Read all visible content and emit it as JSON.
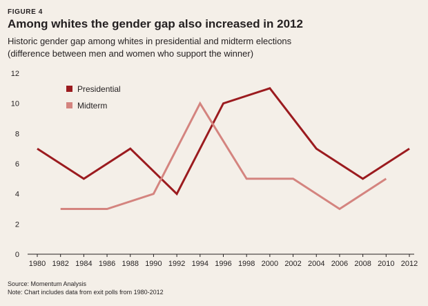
{
  "header": {
    "figure_label": "FIGURE 4",
    "title": "Among whites the gender gap also increased in 2012",
    "subtitle_line1": "Historic gender gap among whites in presidential and midterm elections",
    "subtitle_line2": "(difference between men and women who support the winner)"
  },
  "notes": {
    "source": "Source: Momentum Analysis",
    "note": "Note: Chart includes data from exit polls  from 1980-2012"
  },
  "chart_data": {
    "type": "line",
    "title": "Among whites the gender gap also increased in 2012",
    "xlabel": "",
    "ylabel": "",
    "xlim": [
      1980,
      2012
    ],
    "ylim": [
      0,
      12
    ],
    "x_ticks": [
      1980,
      1982,
      1984,
      1986,
      1988,
      1990,
      1992,
      1994,
      1996,
      1998,
      2000,
      2002,
      2004,
      2006,
      2008,
      2010,
      2012
    ],
    "y_ticks": [
      0,
      2,
      4,
      6,
      8,
      10,
      12
    ],
    "grid": false,
    "legend_position": "top-left",
    "series": [
      {
        "name": "Presidential",
        "color": "#9b1b1f",
        "x": [
          1980,
          1984,
          1988,
          1992,
          1996,
          2000,
          2004,
          2008,
          2012
        ],
        "values": [
          7,
          5,
          7,
          4,
          10,
          11,
          7,
          5,
          7
        ]
      },
      {
        "name": "Midterm",
        "color": "#d4847f",
        "x": [
          1982,
          1986,
          1990,
          1994,
          1998,
          2002,
          2006,
          2010
        ],
        "values": [
          3,
          3,
          4,
          10,
          5,
          5,
          3,
          5
        ]
      }
    ]
  }
}
